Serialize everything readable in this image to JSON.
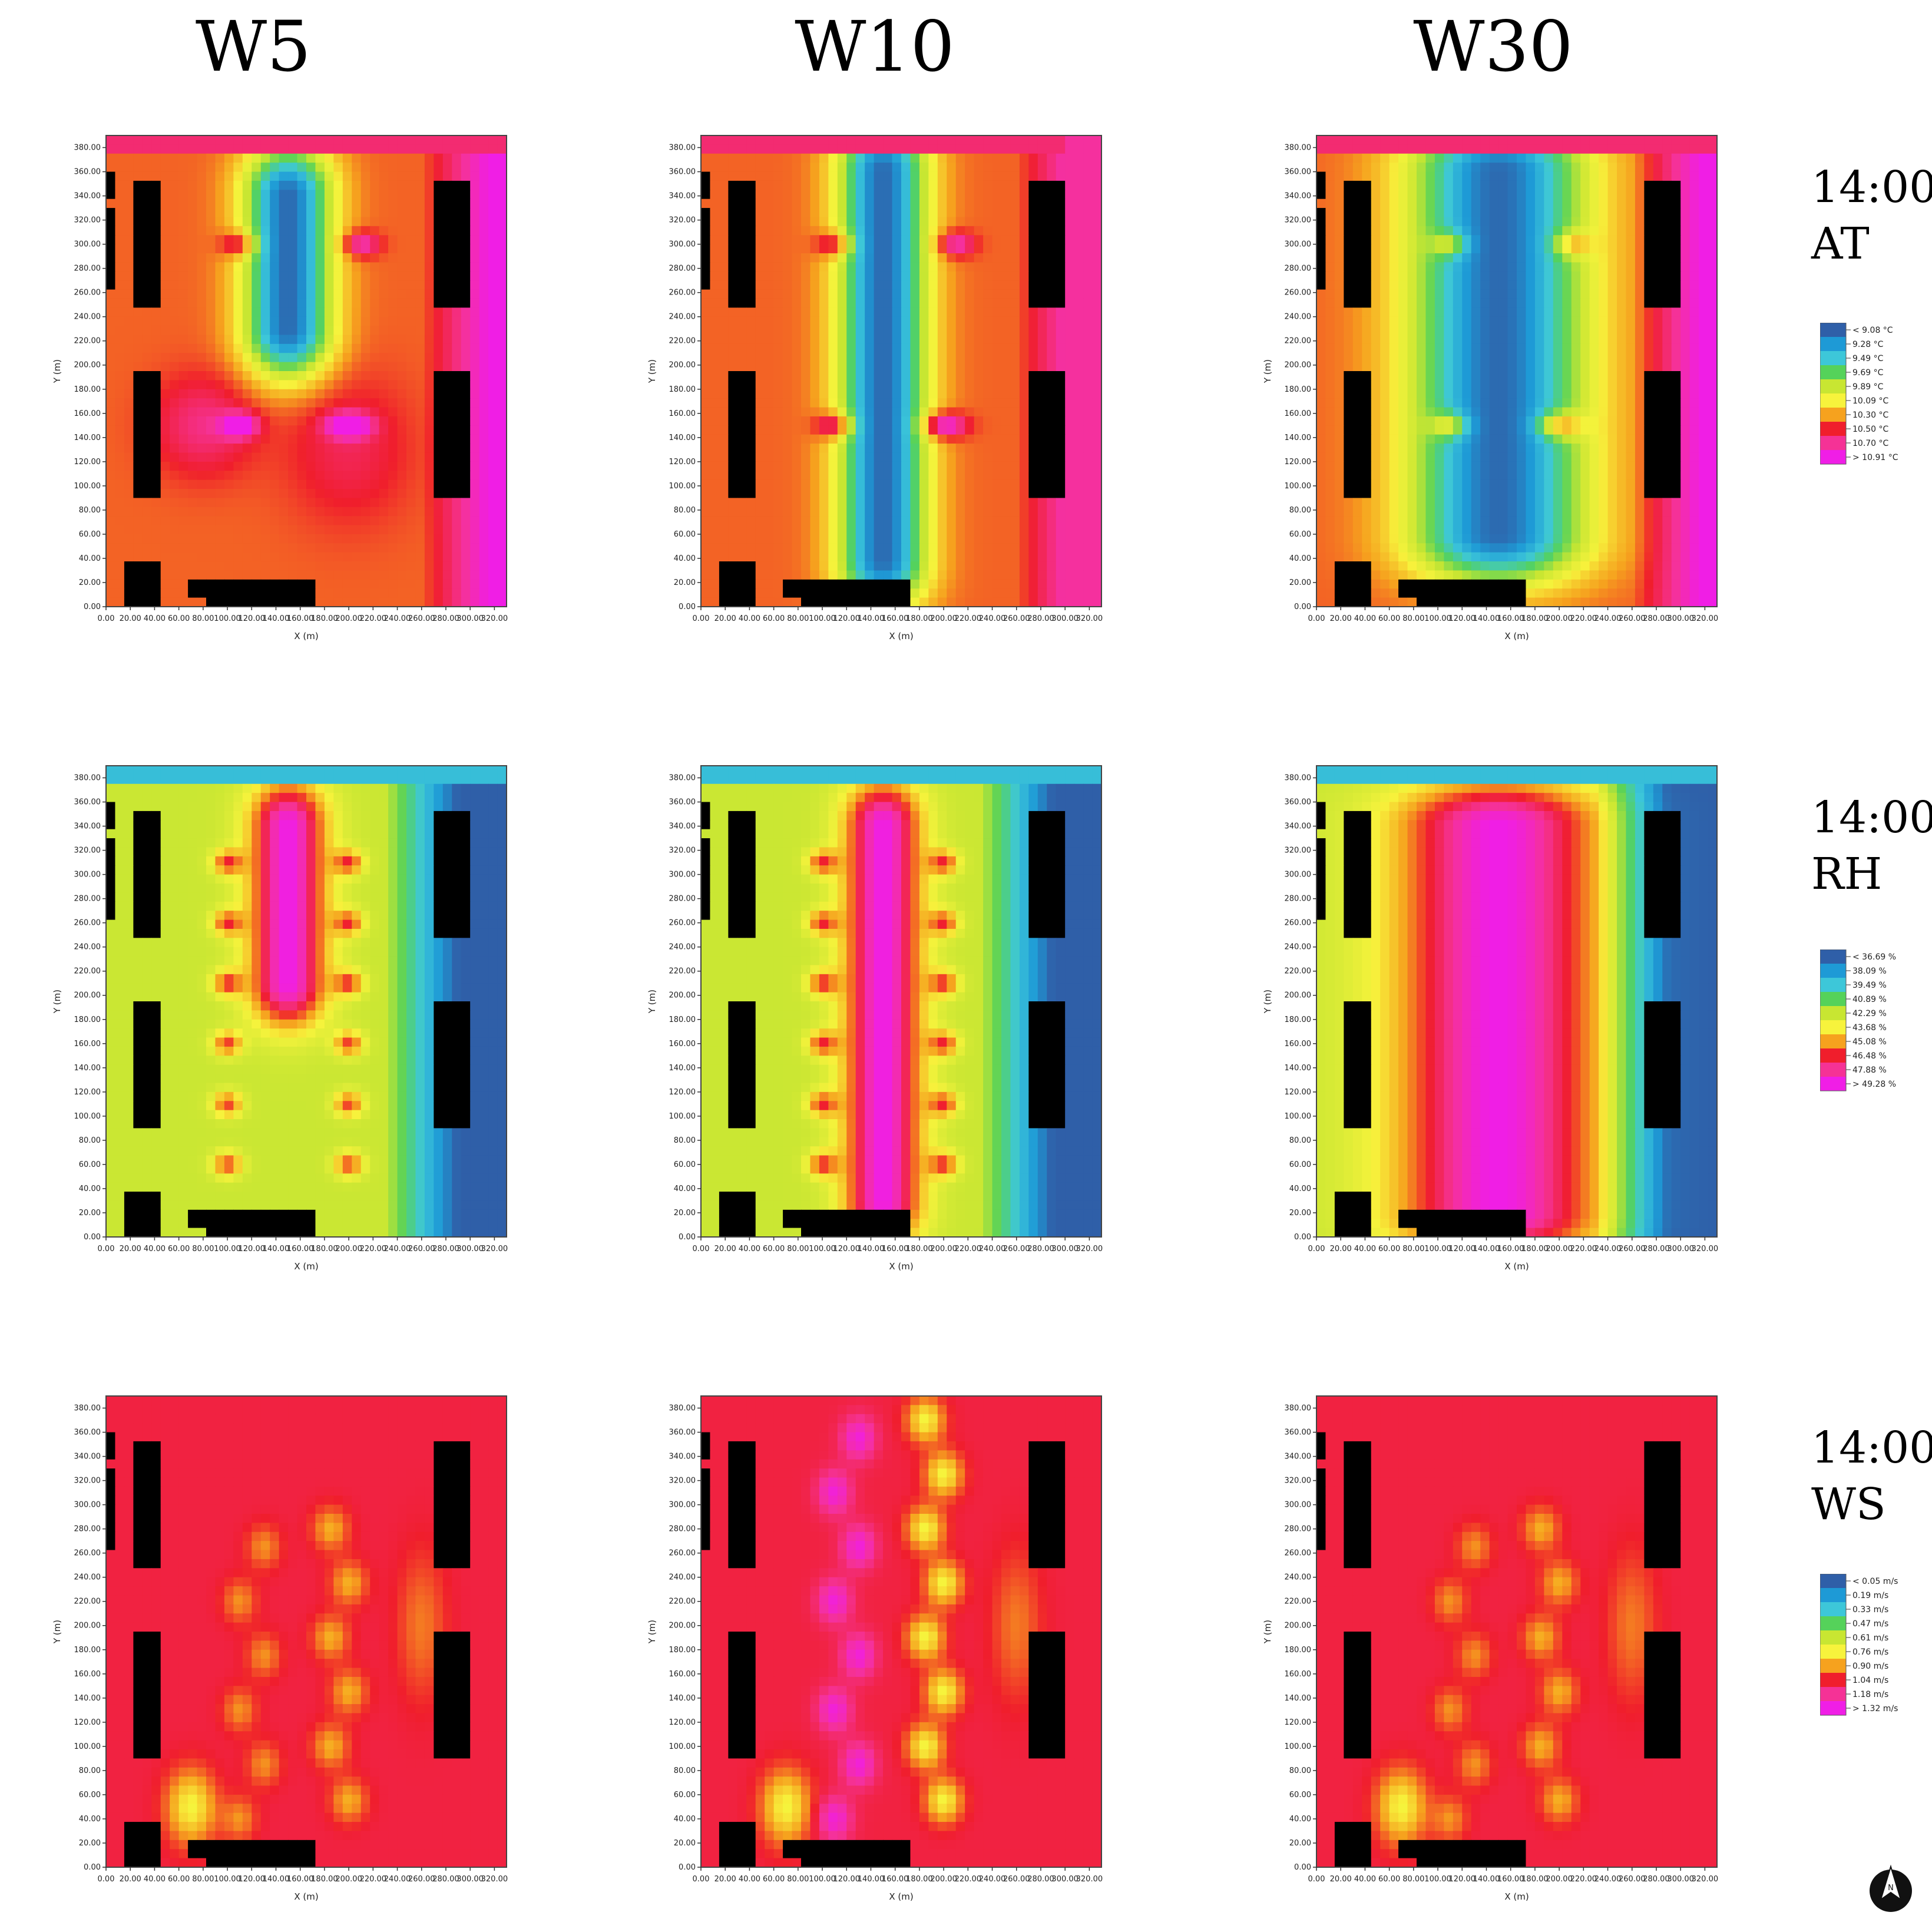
{
  "columns": [
    "W5",
    "W10",
    "W30"
  ],
  "rows": [
    {
      "time": "14:00",
      "variable": "AT"
    },
    {
      "time": "14:00",
      "variable": "RH"
    },
    {
      "time": "14:00",
      "variable": "WS"
    }
  ],
  "legend_colors": [
    "#2f5fa8",
    "#1e9ad6",
    "#3dc7d9",
    "#55d25a",
    "#c8e632",
    "#f7f33c",
    "#f6a21e",
    "#f01e2c",
    "#f53296",
    "#f01ee6"
  ],
  "chart_data": [
    {
      "type": "heatmap",
      "variable": "AT",
      "legend_unit": "°C",
      "legend": [
        "< 9.08 °C",
        "9.28  °C",
        "9.49  °C",
        "9.69  °C",
        "9.89  °C",
        "10.09 °C",
        "10.30 °C",
        "10.50 °C",
        "10.70 °C",
        "> 10.91 °C"
      ],
      "xlabel": "X (m)",
      "ylabel": "Y (m)",
      "xlim": [
        0,
        330
      ],
      "ylim": [
        0,
        390
      ],
      "x_ticks": [
        "0.00",
        "20.00",
        "40.00",
        "60.00",
        "80.00",
        "100.00",
        "120.00",
        "140.00",
        "160.00",
        "180.00",
        "200.00",
        "220.00",
        "240.00",
        "260.00",
        "280.00",
        "300.00",
        "320.00"
      ],
      "y_ticks": [
        "0.00",
        "20.00",
        "40.00",
        "60.00",
        "80.00",
        "100.00",
        "120.00",
        "140.00",
        "160.00",
        "180.00",
        "200.00",
        "220.00",
        "240.00",
        "260.00",
        "280.00",
        "300.00",
        "320.00",
        "340.00",
        "360.00",
        "380.00"
      ]
    },
    {
      "type": "heatmap",
      "variable": "RH",
      "legend_unit": "%",
      "legend": [
        "< 36.69 %",
        "38.09  %",
        "39.49  %",
        "40.89  %",
        "42.29  %",
        "43.68  %",
        "45.08  %",
        "46.48  %",
        "47.88  %",
        "> 49.28 %"
      ],
      "xlabel": "X (m)",
      "ylabel": "Y (m)",
      "xlim": [
        0,
        330
      ],
      "ylim": [
        0,
        390
      ],
      "x_ticks": [
        "0.00",
        "20.00",
        "40.00",
        "60.00",
        "80.00",
        "100.00",
        "120.00",
        "140.00",
        "160.00",
        "180.00",
        "200.00",
        "220.00",
        "240.00",
        "260.00",
        "280.00",
        "300.00",
        "320.00"
      ],
      "y_ticks": [
        "0.00",
        "20.00",
        "40.00",
        "60.00",
        "80.00",
        "100.00",
        "120.00",
        "140.00",
        "160.00",
        "180.00",
        "200.00",
        "220.00",
        "240.00",
        "260.00",
        "280.00",
        "300.00",
        "320.00",
        "340.00",
        "360.00",
        "380.00"
      ]
    },
    {
      "type": "heatmap",
      "variable": "WS",
      "legend_unit": "m/s",
      "legend": [
        "< 0.05 m/s",
        "0.19  m/s",
        "0.33  m/s",
        "0.47  m/s",
        "0.61  m/s",
        "0.76  m/s",
        "0.90  m/s",
        "1.04  m/s",
        "1.18  m/s",
        "> 1.32 m/s"
      ],
      "xlabel": "X (m)",
      "ylabel": "Y (m)",
      "xlim": [
        0,
        330
      ],
      "ylim": [
        0,
        390
      ],
      "x_ticks": [
        "0.00",
        "20.00",
        "40.00",
        "60.00",
        "80.00",
        "100.00",
        "120.00",
        "140.00",
        "160.00",
        "180.00",
        "200.00",
        "220.00",
        "240.00",
        "260.00",
        "280.00",
        "300.00",
        "320.00"
      ],
      "y_ticks": [
        "0.00",
        "20.00",
        "40.00",
        "60.00",
        "80.00",
        "100.00",
        "120.00",
        "140.00",
        "160.00",
        "180.00",
        "200.00",
        "220.00",
        "240.00",
        "260.00",
        "280.00",
        "300.00",
        "320.00",
        "340.00",
        "360.00",
        "380.00"
      ]
    }
  ],
  "compass": {
    "label": "N"
  }
}
